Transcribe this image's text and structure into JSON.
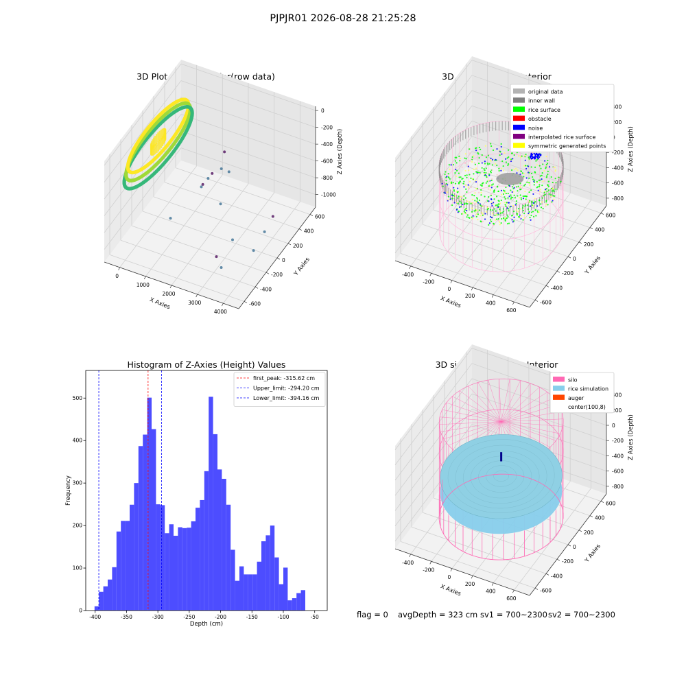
{
  "figure": {
    "suptitle": "PJPJR01 2026-08-28 21:25:28",
    "status_line": {
      "flag": "flag = 0",
      "avg_depth": "avgDepth = 323 cm",
      "sv1": "sv1 = 700~2300",
      "sv2": "sv2 = 700~2300"
    }
  },
  "chart_data": [
    {
      "id": "raw",
      "type": "scatter",
      "title": "3D Plot of Silo Interior(row data)",
      "xlabel": "X Axies",
      "ylabel": "Y Axies",
      "zlabel": "Z Axies (Depth)",
      "xticks": [
        0,
        1000,
        2000,
        3000,
        4000
      ],
      "yticks": [
        -600,
        -400,
        -200,
        0,
        200,
        400,
        600
      ],
      "zticks": [
        0,
        -200,
        -400,
        -600,
        -800,
        -1000
      ],
      "xlim": [
        -600,
        4600
      ],
      "ylim": [
        -700,
        700
      ],
      "zlim": [
        -1150,
        50
      ],
      "colormap": [
        "#440154",
        "#31688e",
        "#35b779",
        "#fde725"
      ],
      "ring_center": [
        0,
        0
      ],
      "ring_depth_range": [
        -330,
        -190
      ],
      "outliers": [
        {
          "x": 1500,
          "y": 500,
          "z": -650
        },
        {
          "x": 1700,
          "y": 350,
          "z": -700
        },
        {
          "x": 2100,
          "y": 300,
          "z": -650
        },
        {
          "x": 1300,
          "y": 200,
          "z": -800
        },
        {
          "x": 1350,
          "y": 150,
          "z": -780
        },
        {
          "x": 1400,
          "y": 250,
          "z": -760
        },
        {
          "x": 1450,
          "y": 300,
          "z": -740
        },
        {
          "x": 900,
          "y": -200,
          "z": -900
        },
        {
          "x": 2200,
          "y": 100,
          "z": -850
        },
        {
          "x": 3800,
          "y": 300,
          "z": -1000
        },
        {
          "x": 3900,
          "y": 100,
          "z": -1000
        },
        {
          "x": 3300,
          "y": -200,
          "z": -900
        },
        {
          "x": 3100,
          "y": -400,
          "z": -950
        },
        {
          "x": 3500,
          "y": -500,
          "z": -950
        },
        {
          "x": 3900,
          "y": -100,
          "z": -1050
        }
      ]
    },
    {
      "id": "classify",
      "type": "scatter",
      "title": "3D classify of Silo Interior",
      "xlabel": "X Axies",
      "ylabel": "Y Axies",
      "zlabel": "Z Axies (Depth)",
      "xticks": [
        -400,
        -200,
        0,
        200,
        400,
        600
      ],
      "yticks": [
        -600,
        -400,
        -200,
        0,
        200,
        400,
        600
      ],
      "zticks": [
        400,
        200,
        0,
        -200,
        -400,
        -600,
        -800
      ],
      "xlim": [
        -550,
        750
      ],
      "ylim": [
        -700,
        700
      ],
      "zlim": [
        -900,
        450
      ],
      "legend_position": "upper right",
      "legend": [
        {
          "label": "original data",
          "color": "#b3b3b3"
        },
        {
          "label": "inner wall",
          "color": "#808080"
        },
        {
          "label": "rice surface",
          "color": "#00ff00"
        },
        {
          "label": "obstacle",
          "color": "#ff0000"
        },
        {
          "label": "noise",
          "color": "#0000ff"
        },
        {
          "label": "interpolated rice surface",
          "color": "#800080"
        },
        {
          "label": "symmetric generated points",
          "color": "#ffff00"
        }
      ],
      "silo": {
        "center": [
          100,
          8
        ],
        "radius": 530,
        "z_top": 0,
        "z_bottom": -850
      },
      "wall_band": [
        -120,
        0
      ],
      "surface_depth_range": [
        -400,
        -250
      ]
    },
    {
      "id": "hist",
      "type": "bar",
      "title": "Histogram of Z-Axies (Height) Values",
      "xlabel": "Depth (cm)",
      "ylabel": "Frequency",
      "xlim": [
        -415,
        -30
      ],
      "ylim": [
        0,
        565
      ],
      "xticks": [
        -400,
        -350,
        -300,
        -250,
        -200,
        -150,
        -100,
        -50
      ],
      "yticks": [
        0,
        100,
        200,
        300,
        400,
        500
      ],
      "bar_color": "#4d4dff",
      "bin_start": -401,
      "bin_width": 7,
      "values": [
        10,
        44,
        57,
        73,
        102,
        186,
        211,
        211,
        249,
        300,
        387,
        414,
        501,
        427,
        250,
        248,
        182,
        203,
        176,
        196,
        194,
        195,
        210,
        242,
        260,
        328,
        503,
        415,
        332,
        310,
        249,
        143,
        70,
        104,
        85,
        85,
        85,
        115,
        163,
        177,
        200,
        125,
        62,
        101,
        24,
        29,
        41,
        48
      ],
      "lines": [
        {
          "label": "first_peak: -315.62 cm",
          "value": -315.62,
          "color": "#ff0000"
        },
        {
          "label": "Upper_limit: -294.20 cm",
          "value": -294.2,
          "color": "#0000ff"
        },
        {
          "label": "Lower_limit: -394.16 cm",
          "value": -394.16,
          "color": "#0000ff"
        }
      ],
      "legend_position": "upper right"
    },
    {
      "id": "sim",
      "type": "surface",
      "title": "3D simulation of Silo Interior",
      "xlabel": "X Axies",
      "ylabel": "Y Axies",
      "zlabel": "Z Axies (Depth)",
      "xticks": [
        -400,
        -200,
        0,
        200,
        400,
        600
      ],
      "yticks": [
        -600,
        -400,
        -200,
        0,
        200,
        400,
        600
      ],
      "zticks": [
        400,
        200,
        0,
        -200,
        -400,
        -600,
        -800
      ],
      "xlim": [
        -550,
        750
      ],
      "ylim": [
        -700,
        700
      ],
      "zlim": [
        -900,
        450
      ],
      "legend_position": "upper right",
      "legend": [
        {
          "label": "silo",
          "color": "#ff69b4"
        },
        {
          "label": "rice simulation",
          "color": "#87ceeb"
        },
        {
          "label": "auger",
          "color": "#ff4500"
        },
        {
          "label": "center(100,8)",
          "color": "#ffffff"
        }
      ],
      "silo": {
        "center": [
          100,
          8
        ],
        "radius": 530,
        "z_top": 400,
        "z_bottom": -850
      },
      "rice_depth": -320,
      "rice_color": "#87ceeb",
      "silo_color": "#ff69b4"
    }
  ]
}
